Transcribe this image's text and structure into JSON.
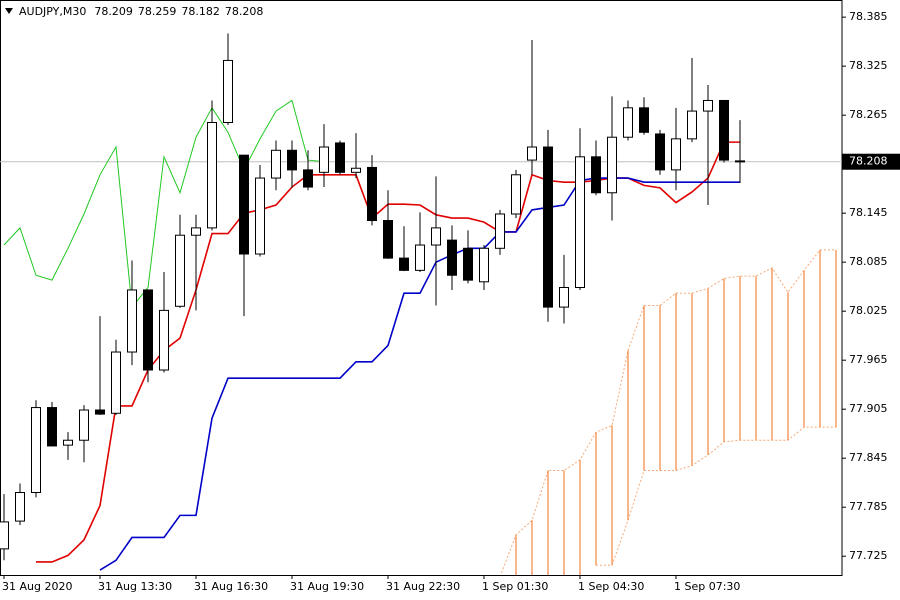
{
  "chart_data": {
    "type": "candlestick",
    "title": "AUDJPY,M30",
    "categories": [
      "31 Aug 2020",
      null,
      null,
      null,
      null,
      null,
      "31 Aug 13:30",
      null,
      null,
      null,
      null,
      null,
      "31 Aug 16:30",
      null,
      null,
      null,
      null,
      null,
      "31 Aug 19:30",
      null,
      null,
      null,
      null,
      null,
      "31 Aug 22:30",
      null,
      null,
      null,
      null,
      null,
      "1 Sep 01:30",
      null,
      null,
      null,
      null,
      null,
      "1 Sep 04:30",
      null,
      null,
      null,
      null,
      null,
      "1 Sep 07:30",
      null,
      null,
      null,
      null,
      null,
      null,
      null,
      null,
      null,
      null
    ],
    "open": [
      77.734,
      77.768,
      77.803,
      77.907,
      77.861,
      77.867,
      77.904,
      77.9,
      77.975,
      78.051,
      77.953,
      78.031,
      78.118,
      78.127,
      78.256,
      78.216,
      78.095,
      78.188,
      78.222,
      78.198,
      78.195,
      78.231,
      78.195,
      78.201,
      78.136,
      78.09,
      78.075,
      78.106,
      78.112,
      78.102,
      78.061,
      78.102,
      78.144,
      78.21,
      78.226,
      78.03,
      78.054,
      78.214,
      78.17,
      78.238,
      78.274,
      78.242,
      78.198,
      78.236,
      78.27,
      78.283,
      78.209,
      null,
      null,
      null,
      null,
      null,
      null
    ],
    "high": [
      77.801,
      77.814,
      77.916,
      77.914,
      77.877,
      77.91,
      78.019,
      77.99,
      78.087,
      78.051,
      78.073,
      78.143,
      78.143,
      78.283,
      78.365,
      78.216,
      78.204,
      78.234,
      78.234,
      78.222,
      78.254,
      78.234,
      78.243,
      78.216,
      78.173,
      78.129,
      78.146,
      78.19,
      78.13,
      78.124,
      78.106,
      78.149,
      78.198,
      78.357,
      78.247,
      78.094,
      78.249,
      78.234,
      78.288,
      78.283,
      78.287,
      78.247,
      78.274,
      78.335,
      78.302,
      78.283,
      78.259,
      null,
      null,
      null,
      null,
      null,
      null
    ],
    "low": [
      77.72,
      77.763,
      77.797,
      77.86,
      77.843,
      77.84,
      77.898,
      77.898,
      77.959,
      77.938,
      77.95,
      78.029,
      78.026,
      78.124,
      78.253,
      78.019,
      78.092,
      78.173,
      78.176,
      78.173,
      78.177,
      78.192,
      78.188,
      78.13,
      78.089,
      78.074,
      78.073,
      78.032,
      78.051,
      78.059,
      78.051,
      78.094,
      78.139,
      78.192,
      78.012,
      78.01,
      78.051,
      78.167,
      78.136,
      78.234,
      78.241,
      78.192,
      78.173,
      78.232,
      78.155,
      78.207,
      78.182,
      null,
      null,
      null,
      null,
      null,
      null
    ],
    "close": [
      77.767,
      77.803,
      77.907,
      77.86,
      77.867,
      77.904,
      77.899,
      77.975,
      78.051,
      77.953,
      78.026,
      78.118,
      78.127,
      78.256,
      78.332,
      78.095,
      78.188,
      78.222,
      78.198,
      78.177,
      78.226,
      78.195,
      78.2,
      78.136,
      78.09,
      78.075,
      78.106,
      78.127,
      78.069,
      78.063,
      78.102,
      78.144,
      78.192,
      78.226,
      78.03,
      78.054,
      78.214,
      78.17,
      78.238,
      78.274,
      78.244,
      78.198,
      78.236,
      78.27,
      78.283,
      78.21,
      78.208,
      null,
      null,
      null,
      null,
      null,
      null
    ],
    "lines": [
      {
        "color": "#e00000",
        "values": [
          null,
          null,
          77.718,
          77.718,
          77.726,
          77.745,
          77.787,
          77.909,
          77.909,
          77.953,
          77.977,
          77.992,
          78.051,
          78.12,
          78.12,
          78.145,
          78.149,
          78.155,
          78.177,
          78.192,
          78.192,
          78.192,
          78.192,
          78.139,
          78.156,
          78.156,
          78.155,
          78.143,
          78.139,
          78.139,
          78.134,
          78.122,
          78.122,
          78.192,
          78.185,
          78.183,
          78.183,
          78.185,
          78.188,
          78.188,
          78.179,
          78.176,
          78.158,
          78.171,
          78.188,
          78.232,
          78.232,
          null,
          null,
          null,
          null,
          null,
          null
        ]
      },
      {
        "color": "#0000c8",
        "values": [
          null,
          null,
          null,
          null,
          null,
          null,
          77.708,
          77.72,
          77.748,
          77.748,
          77.748,
          77.775,
          77.775,
          77.894,
          77.943,
          77.943,
          77.943,
          77.943,
          77.943,
          77.943,
          77.943,
          77.943,
          77.963,
          77.963,
          77.983,
          78.047,
          78.047,
          78.085,
          78.094,
          78.102,
          78.102,
          78.122,
          78.122,
          78.149,
          78.152,
          78.155,
          78.185,
          78.188,
          78.188,
          78.188,
          78.183,
          78.183,
          78.183,
          78.183,
          78.183,
          78.183,
          78.183,
          null,
          null,
          null,
          null,
          null,
          null
        ]
      },
      {
        "color": "#22c822",
        "values": [
          78.106,
          78.127,
          78.069,
          78.063,
          78.102,
          78.144,
          78.192,
          78.226,
          78.03,
          78.054,
          78.214,
          78.17,
          78.238,
          78.274,
          78.244,
          78.198,
          78.236,
          78.27,
          78.283,
          78.21,
          78.208,
          null,
          null,
          null,
          null,
          null,
          null,
          null,
          null,
          null,
          null,
          null,
          null,
          null,
          null,
          null,
          null,
          null,
          null,
          null,
          null,
          null,
          null,
          null,
          null,
          null,
          null,
          null,
          null,
          null,
          null,
          null,
          null
        ]
      }
    ],
    "cloud": {
      "color": "#f4843c",
      "upper": [
        null,
        null,
        null,
        null,
        null,
        null,
        null,
        null,
        null,
        null,
        null,
        null,
        null,
        null,
        null,
        null,
        null,
        null,
        null,
        null,
        null,
        null,
        null,
        null,
        null,
        null,
        null,
        null,
        null,
        null,
        null,
        77.7,
        77.751,
        77.769,
        77.83,
        77.83,
        77.843,
        77.877,
        77.885,
        77.977,
        78.032,
        78.032,
        78.047,
        78.047,
        78.053,
        78.065,
        78.068,
        78.068,
        78.078,
        78.048,
        78.075,
        78.1,
        78.1
      ],
      "lower": [
        null,
        null,
        null,
        null,
        null,
        null,
        null,
        null,
        null,
        null,
        null,
        null,
        null,
        null,
        null,
        null,
        null,
        null,
        null,
        null,
        null,
        null,
        null,
        null,
        null,
        null,
        null,
        null,
        null,
        null,
        null,
        null,
        null,
        null,
        null,
        null,
        null,
        77.714,
        77.714,
        77.769,
        77.83,
        77.83,
        77.83,
        77.836,
        77.849,
        77.865,
        77.867,
        77.867,
        77.867,
        77.867,
        77.883,
        77.883,
        77.883
      ]
    },
    "ylim": [
      77.702,
      78.406
    ],
    "yticks": [
      78.385,
      78.325,
      78.265,
      78.145,
      78.085,
      78.025,
      77.965,
      77.905,
      77.845,
      77.785,
      77.725
    ]
  }
}
